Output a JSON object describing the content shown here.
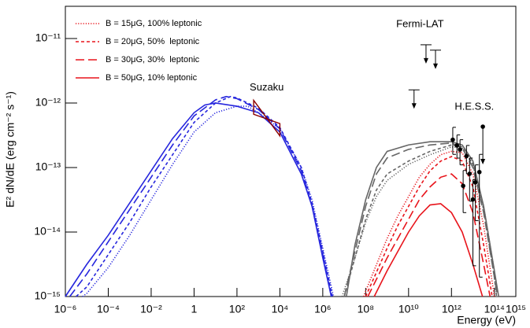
{
  "chart_data": {
    "type": "line",
    "xlabel": "Energy (eV)",
    "ylabel": "E² dN/dE (erg cm⁻² s⁻¹)",
    "log_x": true,
    "log_y": true,
    "xlim": [
      1e-06,
      1000000000000000.0
    ],
    "ylim": [
      1e-15,
      3.16e-11
    ],
    "xticks": [
      {
        "value": 1e-06,
        "label": "10⁻⁶"
      },
      {
        "value": 0.0001,
        "label": "10⁻⁴"
      },
      {
        "value": 0.01,
        "label": "10⁻²"
      },
      1,
      {
        "value": 100.0,
        "label": "10²"
      },
      {
        "value": 10000.0,
        "label": "10⁴"
      },
      {
        "value": 1000000.0,
        "label": "10⁶"
      },
      {
        "value": 100000000.0,
        "label": "10⁸"
      },
      {
        "value": 10000000000.0,
        "label": "10¹⁰"
      },
      {
        "value": 1000000000000.0,
        "label": "10¹²"
      },
      {
        "value": 100000000000000.0,
        "label": "10¹⁴"
      },
      {
        "value": 1000000000000000.0,
        "label": "10¹⁵"
      }
    ],
    "yticks": [
      {
        "value": 1e-15,
        "label": "10⁻¹⁵"
      },
      {
        "value": 1e-14,
        "label": "10⁻¹⁴"
      },
      {
        "value": 1e-13,
        "label": "10⁻¹³"
      },
      {
        "value": 1e-12,
        "label": "10⁻¹²"
      },
      {
        "value": 1e-11,
        "label": "10⁻¹¹"
      }
    ],
    "legend": "top-left",
    "series": [
      {
        "name": "B = 15μG, 100% leptonic",
        "color": "#e8141b",
        "dash": "dotted",
        "x": [
          79000000.0,
          1000000000.0,
          3160000000.0,
          10000000000.0,
          31600000000.0,
          100000000000.0,
          316000000000.0,
          1000000000000.0,
          3160000000000.0,
          10000000000000.0,
          31600000000000.0,
          100000000000000.0
        ],
        "values": [
          1e-15,
          7.94e-15,
          1.78e-14,
          3.55e-14,
          7.08e-14,
          1.12e-13,
          1.58e-13,
          1.78e-13,
          1.7e-13,
          7.94e-14,
          1.26e-14,
          1e-15
        ]
      },
      {
        "name": "B = 20μG, 50%  leptonic",
        "color": "#e8141b",
        "dash": "short",
        "x": [
          100000000.0,
          1000000000.0,
          3160000000.0,
          10000000000.0,
          31600000000.0,
          100000000000.0,
          316000000000.0,
          1000000000000.0,
          3160000000000.0,
          10000000000000.0,
          31600000000000.0,
          79000000000000.0
        ],
        "values": [
          1e-15,
          5.62e-15,
          1.26e-14,
          2.51e-14,
          5.01e-14,
          8.91e-14,
          1.26e-13,
          1.48e-13,
          1.26e-13,
          5.01e-14,
          6.31e-15,
          1e-15
        ]
      },
      {
        "name": "B = 30μG, 30%  leptonic",
        "color": "#e8141b",
        "dash": "long",
        "x": [
          126000000.0,
          1000000000.0,
          3160000000.0,
          10000000000.0,
          31600000000.0,
          100000000000.0,
          316000000000.0,
          1000000000000.0,
          3160000000000.0,
          10000000000000.0,
          31600000000000.0,
          63000000000000.0
        ],
        "values": [
          1e-15,
          3.98e-15,
          7.94e-15,
          1.58e-14,
          3.16e-14,
          5.01e-14,
          7.08e-14,
          7.94e-14,
          5.62e-14,
          2e-14,
          3.16e-15,
          1e-15
        ]
      },
      {
        "name": "B = 50μG, 10% leptonic",
        "color": "#e8141b",
        "dash": "solid",
        "x": [
          250000000.0,
          1000000000.0,
          3160000000.0,
          10000000000.0,
          31600000000.0,
          100000000000.0,
          316000000000.0,
          1000000000000.0,
          3160000000000.0,
          10000000000000.0,
          28000000000000.0
        ],
        "values": [
          1e-15,
          2.51e-15,
          5.01e-15,
          1e-14,
          1.78e-14,
          2.63e-14,
          2.75e-14,
          2e-14,
          1e-14,
          3.16e-15,
          1e-15
        ]
      },
      {
        "color": "#2626dd",
        "dash": "dotted",
        "x": [
          6.3e-06,
          1e-05,
          0.0001,
          0.001,
          0.01,
          0.1,
          1,
          10,
          100,
          316,
          1000,
          10000.0,
          100000.0,
          316000.0,
          1000000.0,
          3160000.0
        ],
        "values": [
          1e-15,
          1.12e-15,
          2.82e-15,
          8.91e-15,
          3.16e-14,
          1.12e-13,
          3.55e-13,
          7.08e-13,
          8.91e-13,
          8.91e-13,
          7.08e-13,
          3.98e-13,
          1e-13,
          3.16e-14,
          5.62e-15,
          1e-15
        ]
      },
      {
        "color": "#2626dd",
        "dash": "short",
        "x": [
          3.16e-06,
          1e-05,
          0.0001,
          0.001,
          0.01,
          0.1,
          1,
          10,
          50,
          100,
          1000,
          10000.0,
          100000.0,
          316000.0,
          1000000.0,
          2800000.0
        ],
        "values": [
          1e-15,
          1.41e-15,
          4.47e-15,
          1.41e-14,
          5.01e-14,
          1.58e-13,
          5.01e-13,
          1e-12,
          1.26e-12,
          1.2e-12,
          8.32e-13,
          4.17e-13,
          1e-13,
          2.82e-14,
          5.01e-15,
          1e-15
        ]
      },
      {
        "color": "#2626dd",
        "dash": "long",
        "x": [
          1.6e-06,
          1e-05,
          0.0001,
          0.001,
          0.01,
          0.1,
          1,
          10,
          31.6,
          100,
          1000,
          10000.0,
          100000.0,
          316000.0,
          1000000.0,
          2500000.0
        ],
        "values": [
          1e-15,
          2.24e-15,
          7.08e-15,
          2.24e-14,
          7.08e-14,
          2.24e-13,
          6.31e-13,
          1.12e-12,
          1.26e-12,
          1.17e-12,
          7.94e-13,
          3.98e-13,
          8.91e-14,
          2.51e-14,
          4.47e-15,
          1e-15
        ]
      },
      {
        "color": "#2626dd",
        "dash": "solid",
        "x": [
          1e-06,
          1e-05,
          0.0001,
          0.001,
          0.01,
          0.1,
          1,
          3.16,
          10,
          100,
          1000,
          10000.0,
          100000.0,
          316000.0,
          1000000.0,
          2500000.0
        ],
        "values": [
          1e-15,
          3.16e-15,
          8.91e-15,
          2.82e-14,
          8.91e-14,
          2.82e-13,
          7.08e-13,
          9.33e-13,
          1e-12,
          8.91e-13,
          7.08e-13,
          3.55e-13,
          7.94e-14,
          2.51e-14,
          3.98e-15,
          1e-15
        ]
      },
      {
        "color": "#666666",
        "dash": "dotted",
        "x": [
          7900000.0,
          31600000.0,
          100000000.0,
          316000000.0,
          1000000000.0,
          10000000000.0,
          100000000000.0,
          1000000000000.0,
          3160000000000.0,
          10000000000000.0,
          31600000000000.0,
          100000000000000.0,
          126000000000000.0
        ],
        "values": [
          1e-15,
          3.98e-15,
          1.41e-14,
          3.55e-14,
          6.31e-14,
          1.12e-13,
          1.58e-13,
          2.09e-13,
          2e-13,
          1.12e-13,
          2.51e-14,
          2.51e-15,
          1e-15
        ]
      },
      {
        "color": "#666666",
        "dash": "short",
        "x": [
          10000000.0,
          31600000.0,
          100000000.0,
          316000000.0,
          1000000000.0,
          10000000000.0,
          100000000000.0,
          1000000000000.0,
          3160000000000.0,
          10000000000000.0,
          31600000000000.0,
          100000000000000.0,
          126000000000000.0
        ],
        "values": [
          1e-15,
          3.98e-15,
          1.58e-14,
          4.47e-14,
          7.94e-14,
          1.26e-13,
          1.78e-13,
          2.24e-13,
          2.09e-13,
          1.12e-13,
          2.24e-14,
          2e-15,
          1e-15
        ]
      },
      {
        "color": "#666666",
        "dash": "long",
        "x": [
          10000000.0,
          31600000.0,
          100000000.0,
          316000000.0,
          1000000000.0,
          10000000000.0,
          100000000000.0,
          1000000000000.0,
          3160000000000.0,
          10000000000000.0,
          31600000000000.0,
          100000000000000.0,
          141000000000000.0
        ],
        "values": [
          1e-15,
          5.01e-15,
          2.51e-14,
          7.94e-14,
          1.41e-13,
          1.91e-13,
          2.24e-13,
          2.4e-13,
          2e-13,
          1e-13,
          2e-14,
          2e-15,
          1e-15
        ]
      },
      {
        "color": "#666666",
        "dash": "solid",
        "x": [
          12600000.0,
          31600000.0,
          100000000.0,
          316000000.0,
          1000000000.0,
          10000000000.0,
          100000000000.0,
          1000000000000.0,
          3160000000000.0,
          10000000000000.0,
          31600000000000.0,
          100000000000000.0,
          158000000000000.0
        ],
        "values": [
          1e-15,
          6.31e-15,
          3.16e-14,
          1e-13,
          1.78e-13,
          2.24e-13,
          2.51e-13,
          2.51e-13,
          2.24e-13,
          1.26e-13,
          2.51e-14,
          2.51e-15,
          1e-15
        ]
      }
    ],
    "suzaku": {
      "label": "Suzaku",
      "color": "#8b0000",
      "x": [
        600,
        10000
      ],
      "upper": [
        1.1e-12,
        4.8e-13
      ],
      "lower": [
        6.7e-13,
        3.1e-13
      ]
    },
    "fermi": {
      "label": "Fermi-LAT",
      "x": [
        18000000000.0,
        65000000000.0,
        180000000000.0
      ],
      "upper_limits": [
        1.6e-12,
        8e-12,
        6.6e-12
      ]
    },
    "hess": {
      "label": "H.E.S.S.",
      "x": [
        1150000000000.0,
        1800000000000.0,
        2500000000000.0,
        3500000000000.0,
        5000000000000.0,
        7000000000000.0,
        10000000000000.0,
        13000000000000.0,
        20000000000000.0
      ],
      "values": [
        2.7e-13,
        2.2e-13,
        1.9e-13,
        5.2e-14,
        1.5e-13,
        8e-14,
        3.2e-14,
        5.9e-14,
        8.5e-14
      ],
      "lower": [
        1.6e-13,
        1.4e-13,
        1.1e-13,
        2e-14,
        8e-14,
        3e-14,
        3e-15,
        1.5e-14,
        2e-15
      ],
      "upper": [
        4.2e-13,
        3.2e-13,
        2.7e-13,
        9e-14,
        2.2e-13,
        1.4e-13,
        6.5e-14,
        1.1e-13,
        1.6e-13
      ],
      "ul_x": [
        29000000000000.0
      ],
      "upper_limits": [
        4.3e-13
      ]
    }
  }
}
